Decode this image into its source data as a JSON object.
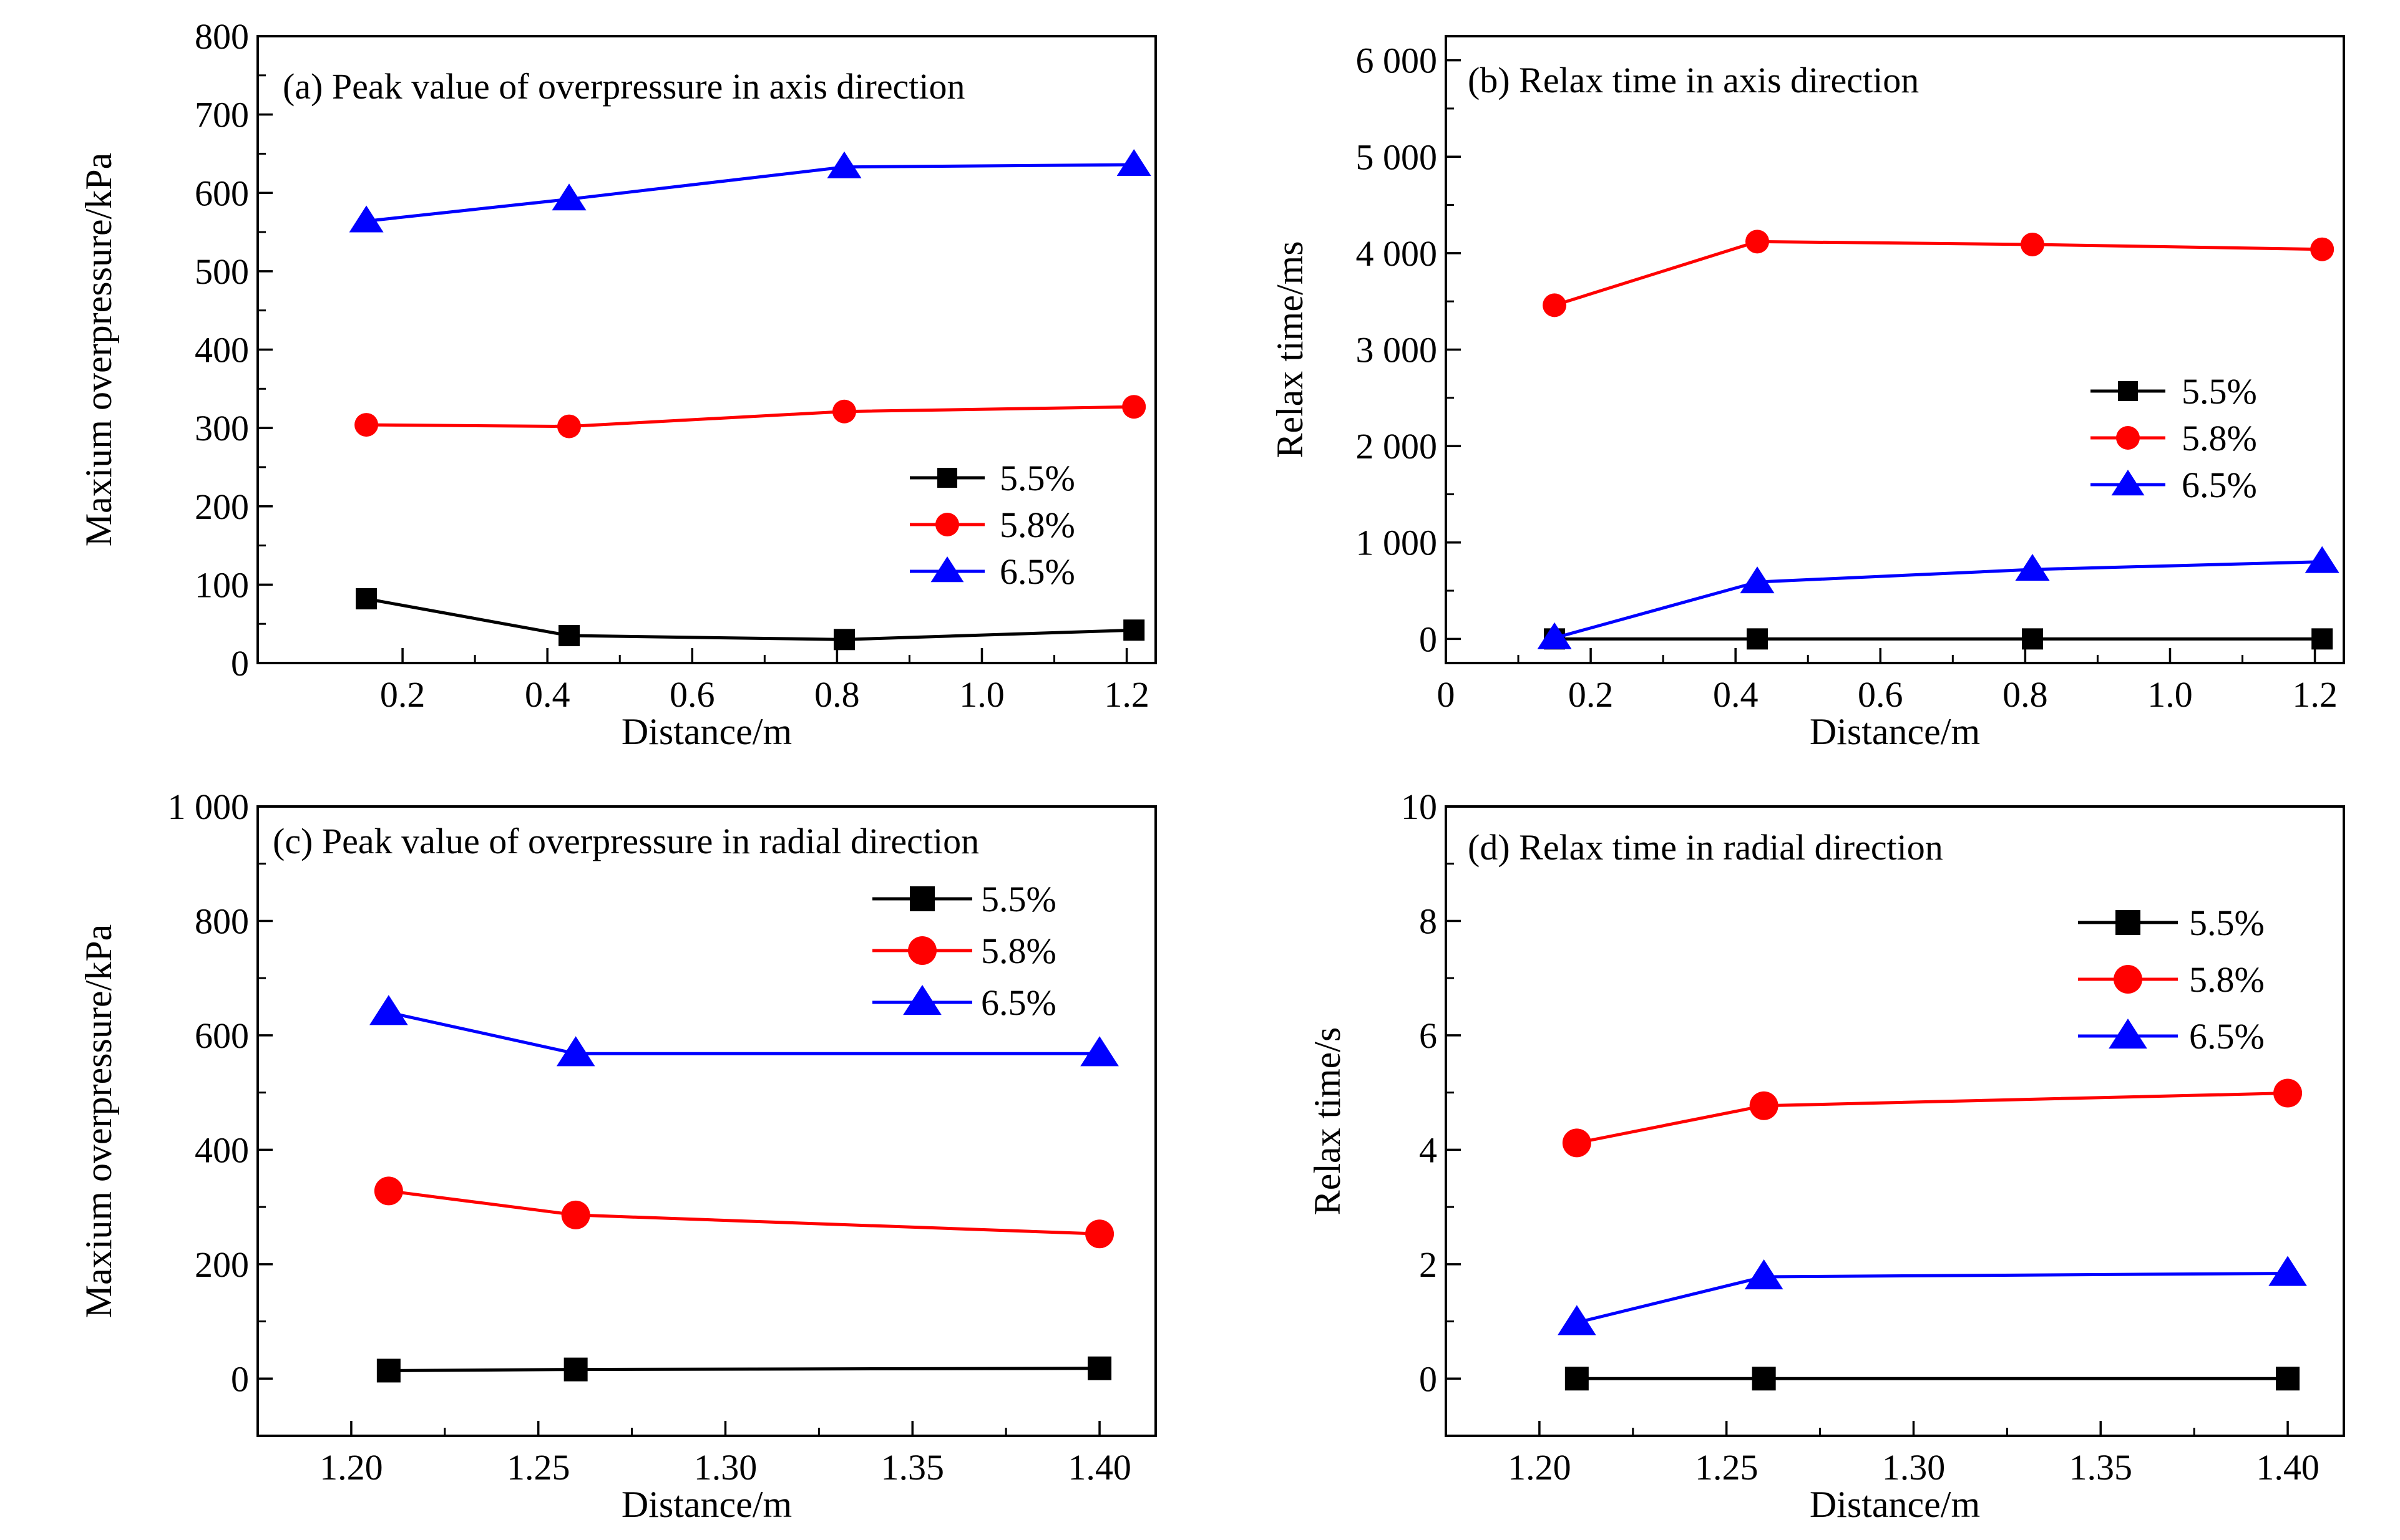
{
  "series_colors": {
    "5.5%": "#000000",
    "5.8%": "#ff0000",
    "6.5%": "#0000ff"
  },
  "marker_shapes": {
    "5.5%": "square",
    "5.8%": "circle",
    "6.5%": "triangle"
  },
  "chart_data": [
    {
      "type": "line",
      "title": "(a) Peak value of overpressure in axis direction",
      "xlabel": "Distance/m",
      "ylabel": "Maxium overpressure/kPa",
      "xlim": [
        0.0,
        1.24
      ],
      "ylim": [
        0,
        800
      ],
      "xticks": [
        0.2,
        0.4,
        0.6,
        0.8,
        1.0,
        1.2
      ],
      "xtick_labels": [
        "0.2",
        "0.4",
        "0.6",
        "0.8",
        "1.0",
        "1.2"
      ],
      "yticks": [
        0,
        100,
        200,
        300,
        400,
        500,
        600,
        700,
        800
      ],
      "ytick_labels": [
        "0",
        "100",
        "200",
        "300",
        "400",
        "500",
        "600",
        "700",
        "800"
      ],
      "legend_position": "right-middle",
      "series": [
        {
          "name": "5.5%",
          "x": [
            0.15,
            0.43,
            0.81,
            1.21
          ],
          "y": [
            82,
            35,
            30,
            42
          ]
        },
        {
          "name": "5.8%",
          "x": [
            0.15,
            0.43,
            0.81,
            1.21
          ],
          "y": [
            304,
            302,
            321,
            327
          ]
        },
        {
          "name": "6.5%",
          "x": [
            0.15,
            0.43,
            0.81,
            1.21
          ],
          "y": [
            564,
            592,
            633,
            636
          ]
        }
      ]
    },
    {
      "type": "line",
      "title": "(b) Relax time in axis direction",
      "xlabel": "Distance/m",
      "ylabel": "Relax time/ms",
      "xlim": [
        0.0,
        1.24
      ],
      "ylim": [
        -250,
        6250
      ],
      "xticks": [
        0.0,
        0.2,
        0.4,
        0.6,
        0.8,
        1.0,
        1.2
      ],
      "xtick_labels": [
        "0",
        "0.2",
        "0.4",
        "0.6",
        "0.8",
        "1.0",
        "1.2"
      ],
      "yticks": [
        0,
        1000,
        2000,
        3000,
        4000,
        5000,
        6000
      ],
      "ytick_labels": [
        "0",
        "1 000",
        "2 000",
        "3 000",
        "4 000",
        "5 000",
        "6 000"
      ],
      "legend_position": "right-middle",
      "series": [
        {
          "name": "5.5%",
          "x": [
            0.15,
            0.43,
            0.81,
            1.21
          ],
          "y": [
            0,
            0,
            0,
            0
          ]
        },
        {
          "name": "5.8%",
          "x": [
            0.15,
            0.43,
            0.81,
            1.21
          ],
          "y": [
            3460,
            4120,
            4090,
            4040
          ]
        },
        {
          "name": "6.5%",
          "x": [
            0.15,
            0.43,
            0.81,
            1.21
          ],
          "y": [
            10,
            590,
            720,
            800
          ]
        }
      ]
    },
    {
      "type": "line",
      "title": "(c) Peak value of overpressure in radial direction",
      "xlabel": "Distance/m",
      "ylabel": "Maxium overpressure/kPa",
      "xlim": [
        1.175,
        1.415
      ],
      "ylim": [
        -100,
        1000
      ],
      "xticks": [
        1.2,
        1.25,
        1.3,
        1.35,
        1.4
      ],
      "xtick_labels": [
        "1.20",
        "1.25",
        "1.30",
        "1.35",
        "1.40"
      ],
      "yticks": [
        0,
        200,
        400,
        600,
        800,
        1000
      ],
      "ytick_labels": [
        "0",
        "200",
        "400",
        "600",
        "800",
        "1 000"
      ],
      "legend_position": "top-right",
      "series": [
        {
          "name": "5.5%",
          "x": [
            1.21,
            1.26,
            1.4
          ],
          "y": [
            14,
            16,
            18
          ]
        },
        {
          "name": "5.8%",
          "x": [
            1.21,
            1.26,
            1.4
          ],
          "y": [
            328,
            286,
            253
          ]
        },
        {
          "name": "6.5%",
          "x": [
            1.21,
            1.26,
            1.4
          ],
          "y": [
            640,
            568,
            568
          ]
        }
      ]
    },
    {
      "type": "line",
      "title": "(d) Relax time in radial direction",
      "xlabel": "Distance/m",
      "ylabel": "Relax time/s",
      "xlim": [
        1.175,
        1.415
      ],
      "ylim": [
        -1,
        10
      ],
      "xticks": [
        1.2,
        1.25,
        1.3,
        1.35,
        1.4
      ],
      "xtick_labels": [
        "1.20",
        "1.25",
        "1.30",
        "1.35",
        "1.40"
      ],
      "yticks": [
        0,
        2,
        4,
        6,
        8,
        10
      ],
      "ytick_labels": [
        "0",
        "2",
        "4",
        "6",
        "8",
        "10"
      ],
      "legend_position": "top-right",
      "series": [
        {
          "name": "5.5%",
          "x": [
            1.21,
            1.26,
            1.4
          ],
          "y": [
            0,
            0,
            0
          ]
        },
        {
          "name": "5.8%",
          "x": [
            1.21,
            1.26,
            1.4
          ],
          "y": [
            4.12,
            4.77,
            4.99
          ]
        },
        {
          "name": "6.5%",
          "x": [
            1.21,
            1.26,
            1.4
          ],
          "y": [
            0.98,
            1.78,
            1.84
          ]
        }
      ]
    }
  ]
}
